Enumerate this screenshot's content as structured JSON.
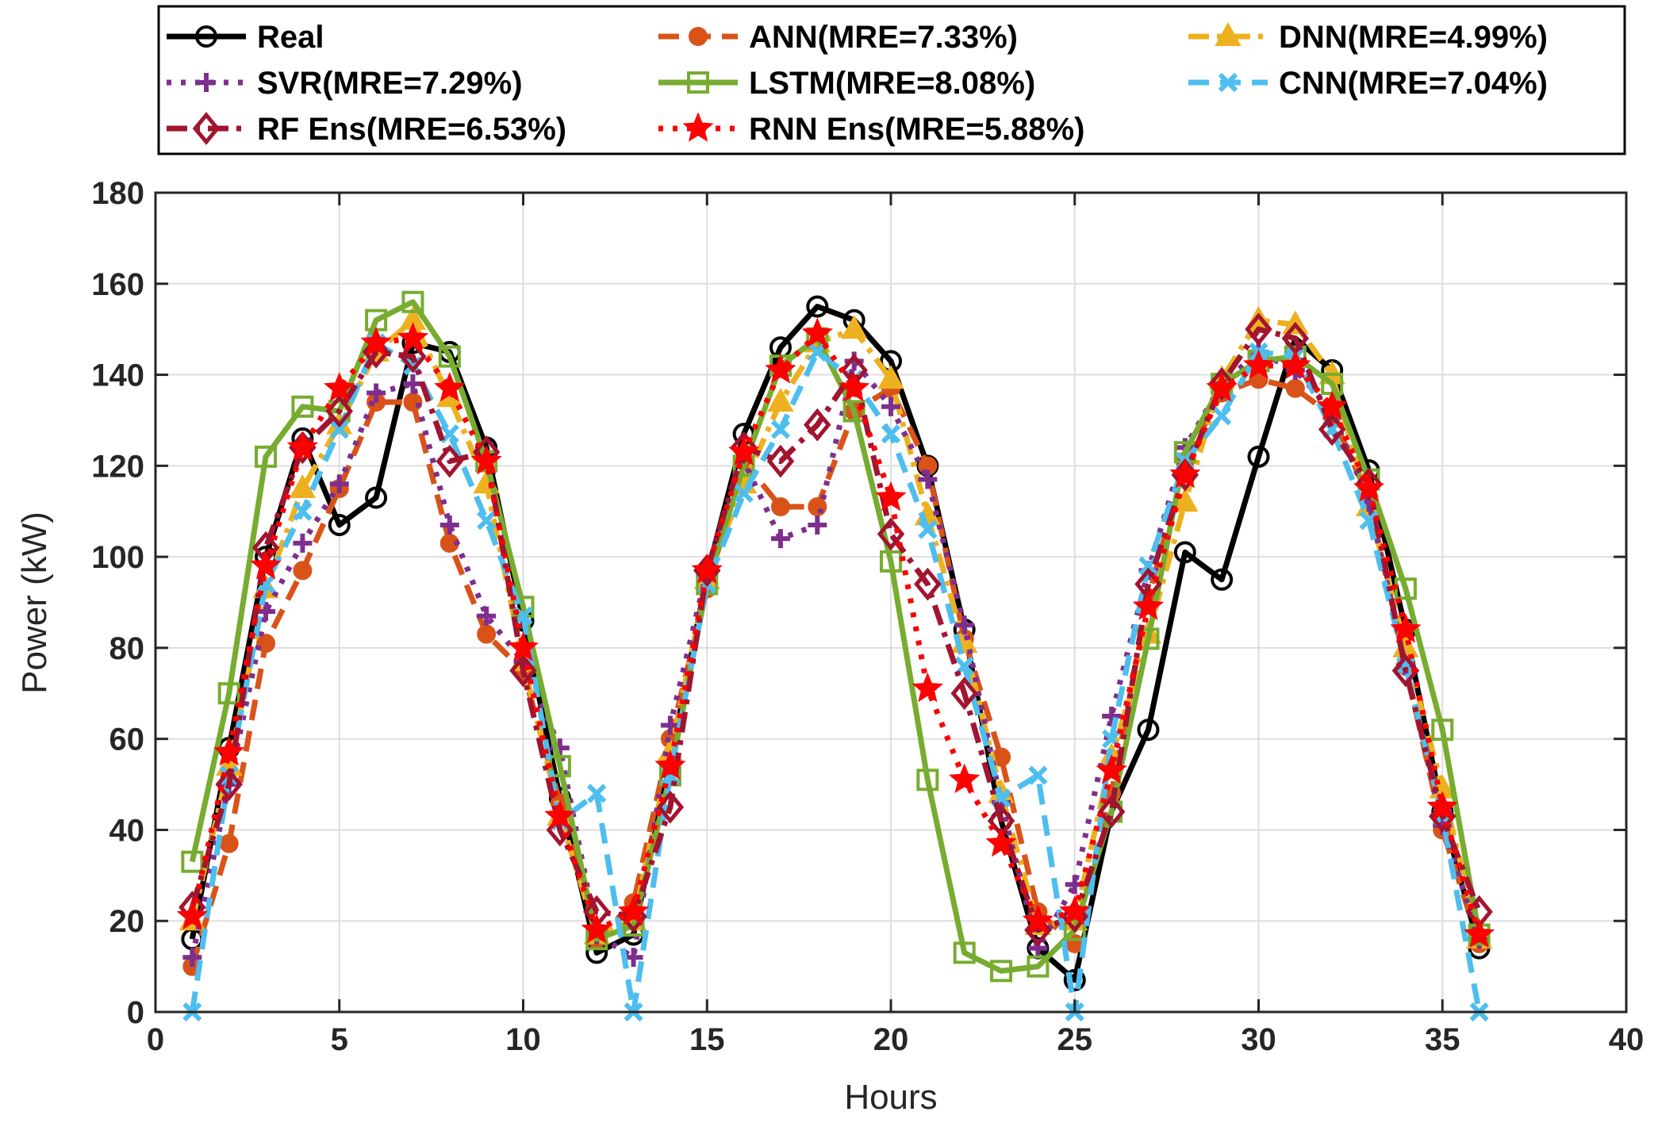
{
  "chart_data": {
    "type": "line",
    "title": "",
    "xlabel": "Hours",
    "ylabel": "Power (kW)",
    "xlim": [
      0,
      40
    ],
    "ylim": [
      0,
      180
    ],
    "xticks": [
      0,
      5,
      10,
      15,
      20,
      25,
      30,
      35,
      40
    ],
    "yticks": [
      0,
      20,
      40,
      60,
      80,
      100,
      120,
      140,
      160,
      180
    ],
    "grid": true,
    "legend_position": "top, outside plot",
    "x": [
      1,
      2,
      3,
      4,
      5,
      6,
      7,
      8,
      9,
      10,
      11,
      12,
      13,
      14,
      15,
      16,
      17,
      18,
      19,
      20,
      21,
      22,
      23,
      24,
      25,
      26,
      27,
      28,
      29,
      30,
      31,
      32,
      33,
      34,
      35,
      36
    ],
    "series": [
      {
        "name": "Real",
        "color": "#000000",
        "dash": "solid",
        "marker": "circle",
        "values": [
          16,
          58,
          100,
          126,
          107,
          113,
          147,
          145,
          124,
          86,
          47,
          13,
          17,
          55,
          96,
          127,
          146,
          155,
          152,
          143,
          120,
          84,
          42,
          14,
          7,
          44,
          62,
          101,
          95,
          122,
          148,
          141,
          119,
          84,
          44,
          14
        ]
      },
      {
        "name": "ANN(MRE=7.33%)",
        "color": "#D95319",
        "dash": "dashed",
        "marker": "dot",
        "values": [
          10,
          37,
          81,
          97,
          115,
          134,
          134,
          103,
          83,
          75,
          46,
          16,
          24,
          60,
          93,
          121,
          111,
          111,
          132,
          137,
          120,
          82,
          56,
          22,
          15,
          48,
          91,
          121,
          136,
          139,
          137,
          131,
          113,
          76,
          40,
          15
        ]
      },
      {
        "name": "DNN(MRE=4.99%)",
        "color": "#EDB120",
        "dash": "dashdot",
        "marker": "triangle",
        "values": [
          20,
          54,
          93,
          115,
          129,
          145,
          152,
          135,
          116,
          77,
          43,
          17,
          20,
          57,
          95,
          116,
          134,
          147,
          150,
          139,
          109,
          81,
          48,
          19,
          20,
          56,
          83,
          112,
          139,
          152,
          151,
          140,
          111,
          80,
          49,
          16
        ]
      },
      {
        "name": "SVR(MRE=7.29%)",
        "color": "#7E2F8E",
        "dash": "dotted",
        "marker": "plus",
        "values": [
          12,
          50,
          88,
          103,
          116,
          136,
          138,
          107,
          87,
          77,
          58,
          17,
          12,
          63,
          97,
          121,
          104,
          107,
          143,
          133,
          117,
          85,
          46,
          14,
          28,
          65,
          97,
          124,
          138,
          145,
          141,
          132,
          112,
          76,
          41,
          16
        ]
      },
      {
        "name": "LSTM(MRE=8.08%)",
        "color": "#77AC30",
        "dash": "solid",
        "marker": "square",
        "values": [
          33,
          70,
          122,
          133,
          132,
          152,
          156,
          144,
          121,
          89,
          54,
          16,
          19,
          52,
          94,
          120,
          142,
          148,
          132,
          99,
          51,
          13,
          9,
          10,
          18,
          44,
          82,
          123,
          138,
          143,
          144,
          138,
          117,
          93,
          62,
          17
        ]
      },
      {
        "name": "CNN(MRE=7.04%)",
        "color": "#4DBEEE",
        "dash": "dashed",
        "marker": "x",
        "values": [
          0,
          52,
          94,
          110,
          128,
          147,
          142,
          127,
          108,
          87,
          42,
          48,
          0,
          52,
          94,
          114,
          128,
          145,
          139,
          127,
          106,
          76,
          47,
          52,
          0,
          60,
          98,
          121,
          131,
          145,
          144,
          128,
          108,
          76,
          43,
          0
        ]
      },
      {
        "name": "RF Ens(MRE=6.53%)",
        "color": "#A2142F",
        "dash": "dashdot",
        "marker": "diamond",
        "values": [
          23,
          50,
          102,
          124,
          132,
          145,
          144,
          121,
          123,
          75,
          40,
          22,
          21,
          45,
          97,
          124,
          121,
          129,
          141,
          105,
          94,
          70,
          42,
          18,
          21,
          44,
          94,
          118,
          138,
          150,
          148,
          128,
          116,
          75,
          43,
          22
        ]
      },
      {
        "name": "RNN Ens(MRE=5.88%)",
        "color": "#FF0000",
        "dash": "dotted",
        "marker": "star",
        "values": [
          21,
          57,
          98,
          124,
          137,
          147,
          148,
          137,
          121,
          80,
          43,
          18,
          22,
          54,
          97,
          123,
          141,
          149,
          137,
          113,
          71,
          51,
          37,
          20,
          22,
          53,
          89,
          118,
          137,
          142,
          142,
          133,
          115,
          84,
          45,
          17
        ]
      }
    ]
  }
}
